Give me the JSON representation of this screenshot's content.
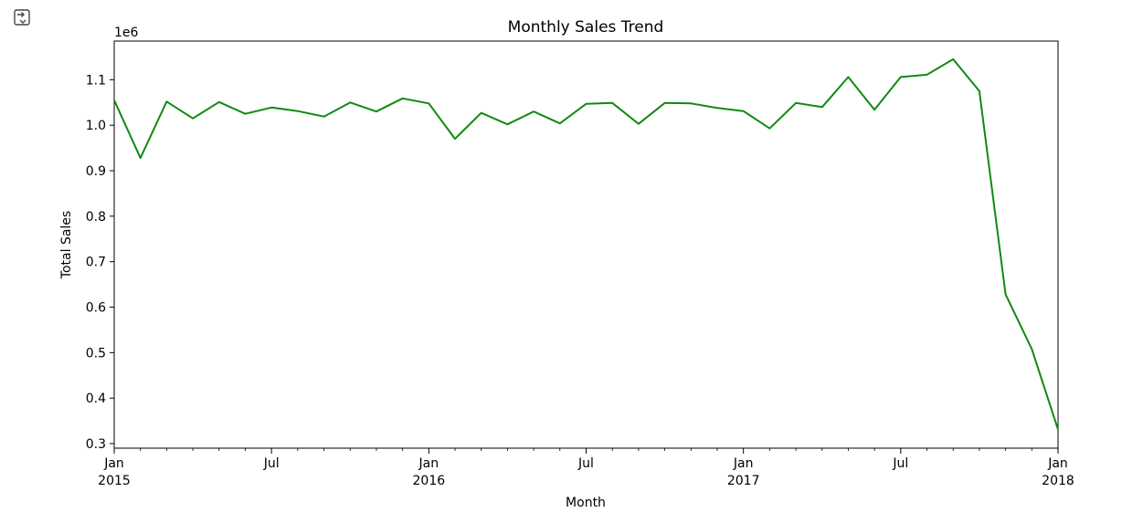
{
  "output_icon": "output-toggle-icon",
  "chart_data": {
    "type": "line",
    "title": "Monthly Sales Trend",
    "xlabel": "Month",
    "ylabel": "Total Sales",
    "y_offset_label": "1e6",
    "ylim": [
      0.29,
      1.185
    ],
    "x_range": [
      "2015-01",
      "2018-01"
    ],
    "grid": false,
    "line_color": "#0f8a0f",
    "x": [
      "2015-01",
      "2015-02",
      "2015-03",
      "2015-04",
      "2015-05",
      "2015-06",
      "2015-07",
      "2015-08",
      "2015-09",
      "2015-10",
      "2015-11",
      "2015-12",
      "2016-01",
      "2016-02",
      "2016-03",
      "2016-04",
      "2016-05",
      "2016-06",
      "2016-07",
      "2016-08",
      "2016-09",
      "2016-10",
      "2016-11",
      "2016-12",
      "2017-01",
      "2017-02",
      "2017-03",
      "2017-04",
      "2017-05",
      "2017-06",
      "2017-07",
      "2017-08",
      "2017-09",
      "2017-10",
      "2017-11",
      "2017-12",
      "2018-01"
    ],
    "values": [
      1.055,
      0.928,
      1.052,
      1.015,
      1.051,
      1.025,
      1.039,
      1.031,
      1.019,
      1.05,
      1.03,
      1.059,
      1.048,
      0.97,
      1.027,
      1.002,
      1.03,
      1.004,
      1.047,
      1.049,
      1.003,
      1.049,
      1.048,
      1.038,
      1.031,
      0.993,
      1.049,
      1.04,
      1.106,
      1.034,
      1.106,
      1.111,
      1.145,
      1.075,
      0.628,
      0.508,
      0.331
    ],
    "y_ticks": [
      "0.3",
      "0.4",
      "0.5",
      "0.6",
      "0.7",
      "0.8",
      "0.9",
      "1.0",
      "1.1"
    ],
    "x_tick_labels": [
      {
        "line1": "Jan",
        "line2": "2015"
      },
      {
        "line1": "Jul",
        "line2": ""
      },
      {
        "line1": "Jan",
        "line2": "2016"
      },
      {
        "line1": "Jul",
        "line2": ""
      },
      {
        "line1": "Jan",
        "line2": "2017"
      },
      {
        "line1": "Jul",
        "line2": ""
      },
      {
        "line1": "Jan",
        "line2": "2018"
      }
    ]
  }
}
